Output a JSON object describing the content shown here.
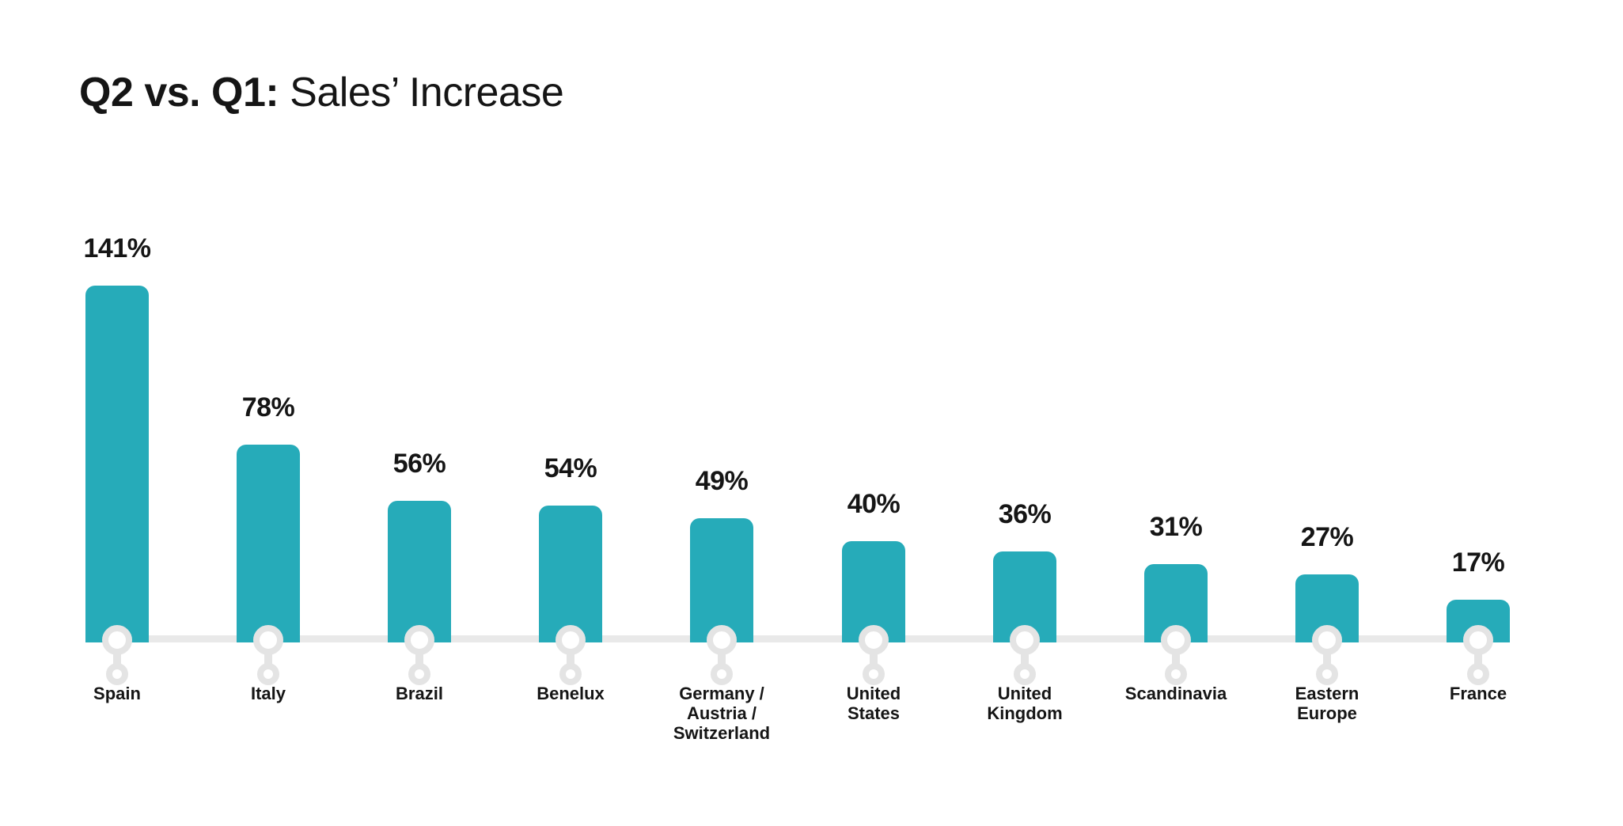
{
  "title": {
    "emphasis": "Q2 vs. Q1:",
    "rest": " Sales’ Increase"
  },
  "colors": {
    "bar": "#26ABB9",
    "baseline": "#E9E9E9",
    "pin": "#E4E4E4",
    "text": "#151515",
    "background": "#FFFFFF"
  },
  "chart_data": {
    "type": "bar",
    "title": "Q2 vs. Q1: Sales’ Increase",
    "unit": "%",
    "categories": [
      "Spain",
      "Italy",
      "Brazil",
      "Benelux",
      "Germany /\nAustria /\nSwitzerland",
      "United\nStates",
      "United\nKingdom",
      "Scandinavia",
      "Eastern\nEurope",
      "France"
    ],
    "values": [
      141,
      78,
      56,
      54,
      49,
      40,
      36,
      31,
      27,
      17
    ],
    "value_labels": [
      "141%",
      "78%",
      "56%",
      "54%",
      "49%",
      "40%",
      "36%",
      "31%",
      "27%",
      "17%"
    ],
    "xlabel": "",
    "ylabel": "",
    "ylim": [
      0,
      150
    ],
    "grid": false,
    "legend": false,
    "bar_color": "#26ABB9",
    "orientation": "vertical"
  }
}
